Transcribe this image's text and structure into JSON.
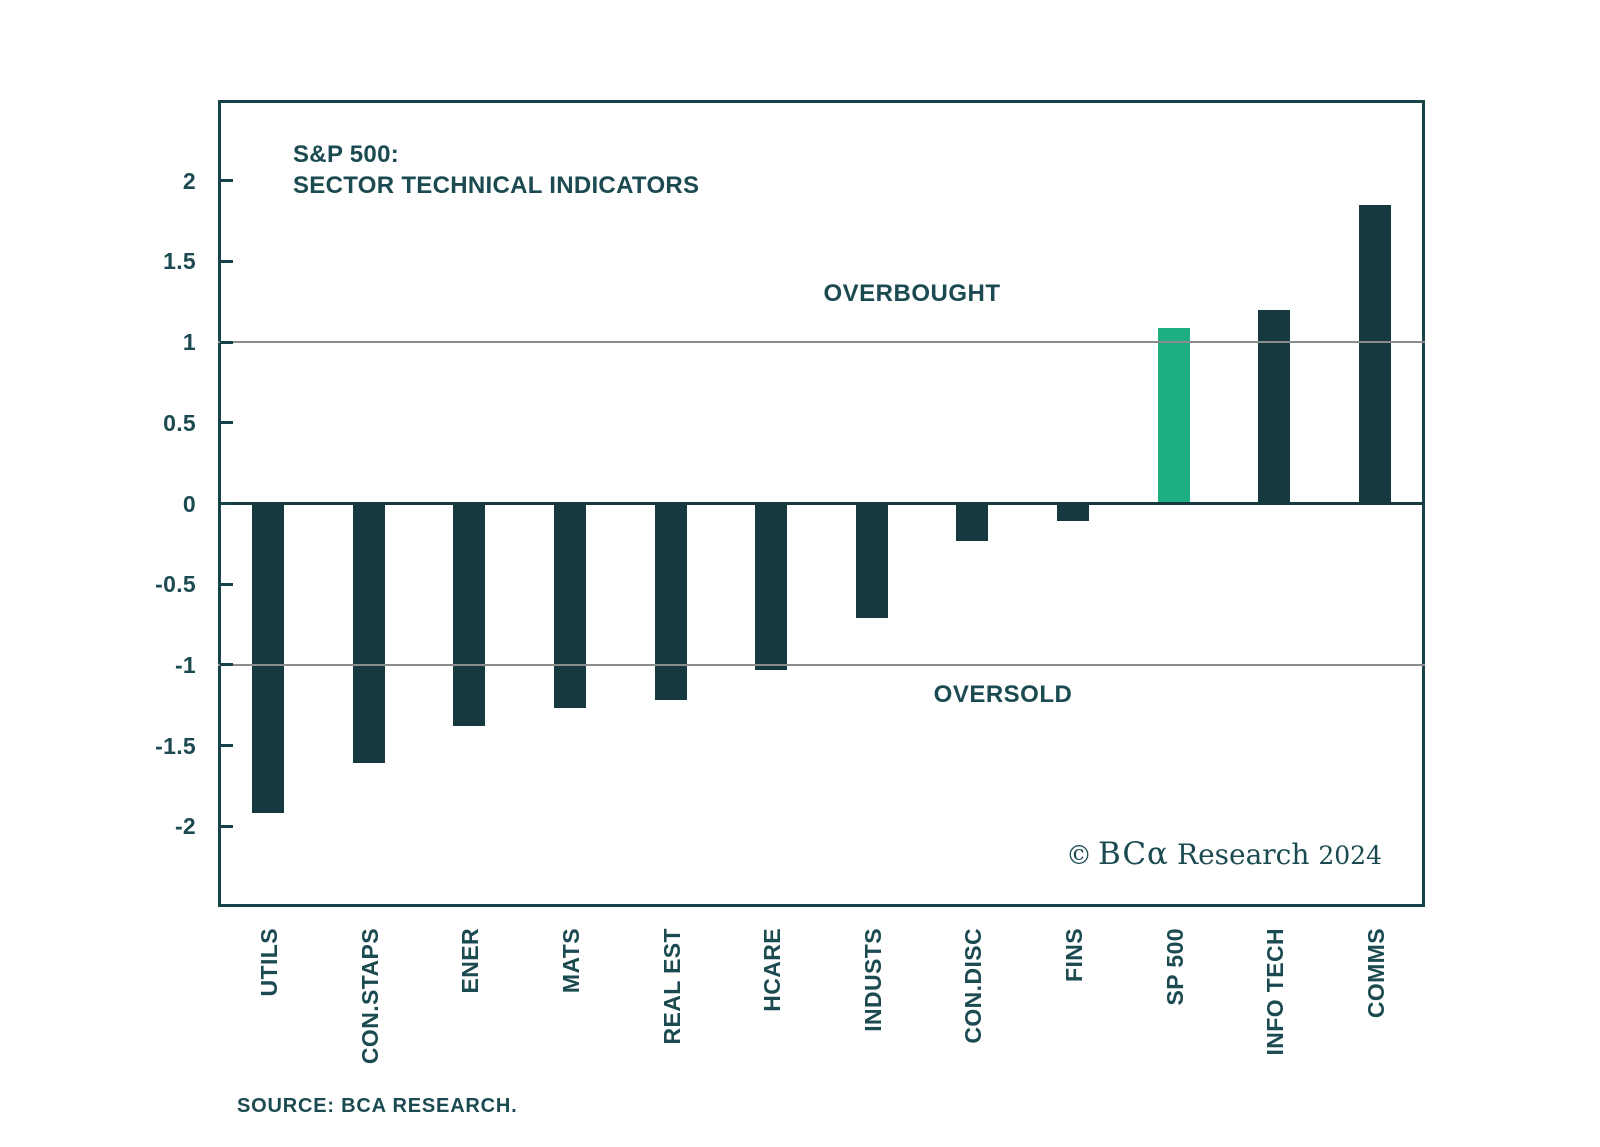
{
  "chart_data": {
    "type": "bar",
    "title_line1": "S&P 500:",
    "title_line2": "SECTOR TECHNICAL INDICATORS",
    "categories": [
      "UTILS",
      "CON.STAPS",
      "ENER",
      "MATS",
      "REAL EST",
      "HCARE",
      "INDUSTS",
      "CON.DISC",
      "FINS",
      "SP 500",
      "INFO TECH",
      "COMMS"
    ],
    "values": [
      -1.92,
      -1.61,
      -1.38,
      -1.27,
      -1.22,
      -1.03,
      -0.71,
      -0.23,
      -0.11,
      1.09,
      1.2,
      1.85
    ],
    "highlight_category": "SP 500",
    "bar_color": "#15393e",
    "highlight_color": "#1eae83",
    "ylim": [
      -2.5,
      2.5
    ],
    "yticks": [
      2,
      1.5,
      1,
      0.5,
      0,
      -0.5,
      -1,
      -1.5,
      -2
    ],
    "ytick_labels": [
      "2",
      "1.5",
      "1",
      "0.5",
      "0",
      "-0.5",
      "-1",
      "-1.5",
      "-2"
    ],
    "gridlines": [
      1,
      -1
    ],
    "grid_color": "#8c8c8c",
    "axis_color": "#17434a",
    "overbought_label": "OVERBOUGHT",
    "oversold_label": "OVERSOLD",
    "legend_position": "none",
    "grid": "horizontal-thresholds-only"
  },
  "branding": {
    "symbol": "©",
    "brand": "BCα",
    "name": "Research",
    "year": "2024"
  },
  "footer": {
    "source": "SOURCE: BCA RESEARCH."
  }
}
